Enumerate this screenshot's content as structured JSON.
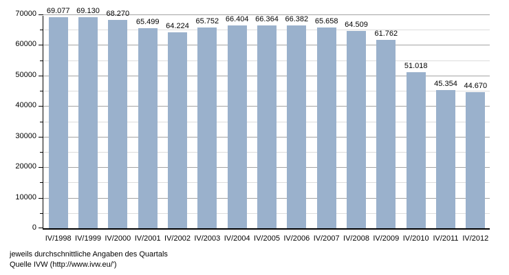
{
  "chart_data": {
    "type": "bar",
    "categories": [
      "IV/1998",
      "IV/1999",
      "IV/2000",
      "IV/2001",
      "IV/2002",
      "IV/2003",
      "IV/2004",
      "IV/2005",
      "IV/2006",
      "IV/2007",
      "IV/2008",
      "IV/2009",
      "IV/2010",
      "IV/2011",
      "IV/2012"
    ],
    "values": [
      69077,
      69130,
      68270,
      65499,
      64224,
      65752,
      66404,
      66364,
      66382,
      65658,
      64509,
      61762,
      51018,
      45354,
      44670
    ],
    "value_labels": [
      "69.077",
      "69.130",
      "68.270",
      "65.499",
      "64.224",
      "65.752",
      "66.404",
      "66.364",
      "66.382",
      "65.658",
      "64.509",
      "61.762",
      "51.018",
      "45.354",
      "44.670"
    ],
    "title": "",
    "xlabel": "",
    "ylabel": "",
    "ylim": [
      0,
      70000
    ],
    "y_major_step": 10000,
    "y_minor_step": 5000,
    "y_tick_labels": [
      "0",
      "10000",
      "20000",
      "30000",
      "40000",
      "50000",
      "60000",
      "70000"
    ],
    "grid": true,
    "legend": false,
    "bar_color": "#9ab1cc",
    "major_grid_color": "#a3a3a3",
    "minor_grid_color": "#dcdcdc",
    "axis_color": "#000000"
  },
  "footer": {
    "line1": "jeweils durchschnittliche Angaben des Quartals",
    "line2": "Quelle IVW (http://www.ivw.eu/')"
  }
}
